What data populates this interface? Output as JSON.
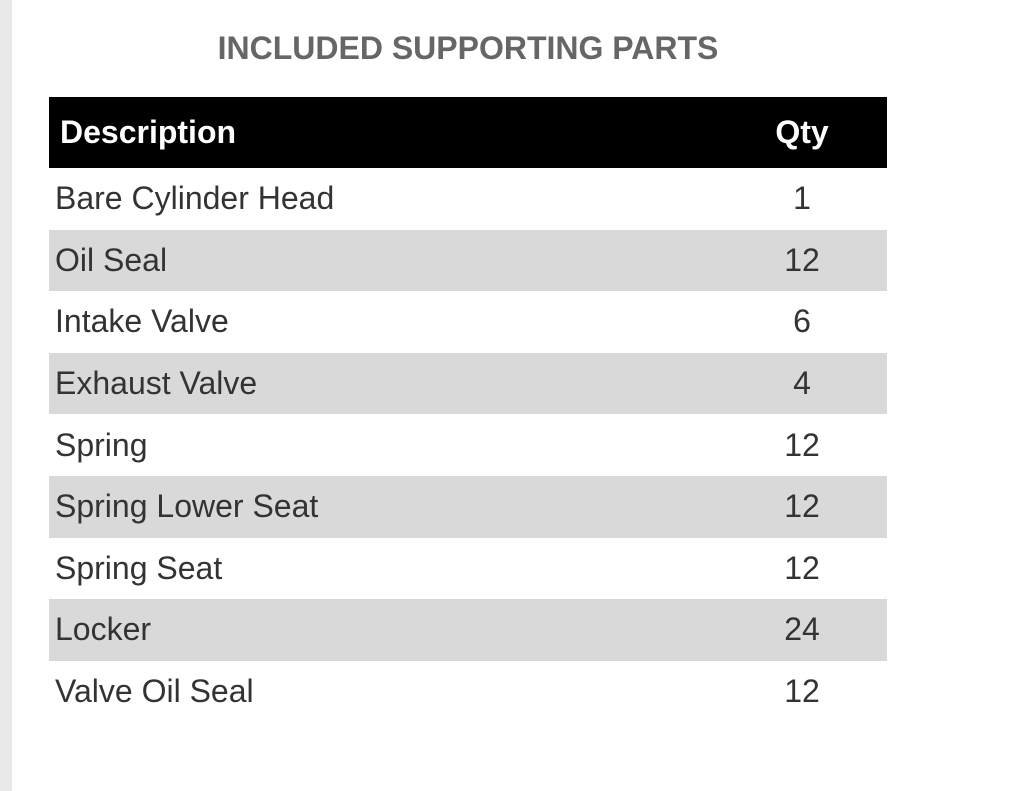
{
  "title": "INCLUDED SUPPORTING PARTS",
  "table": {
    "header": [
      "Description",
      "Qty"
    ],
    "rows": [
      [
        "Bare Cylinder Head",
        1
      ],
      [
        "Oil Seal",
        12
      ],
      [
        "Intake Valve",
        6
      ],
      [
        "Exhaust Valve",
        4
      ],
      [
        "Spring",
        12
      ],
      [
        "Spring Lower Seat",
        12
      ],
      [
        "Spring Seat",
        12
      ],
      [
        "Locker",
        24
      ],
      [
        "Valve Oil Seal",
        12
      ]
    ]
  }
}
